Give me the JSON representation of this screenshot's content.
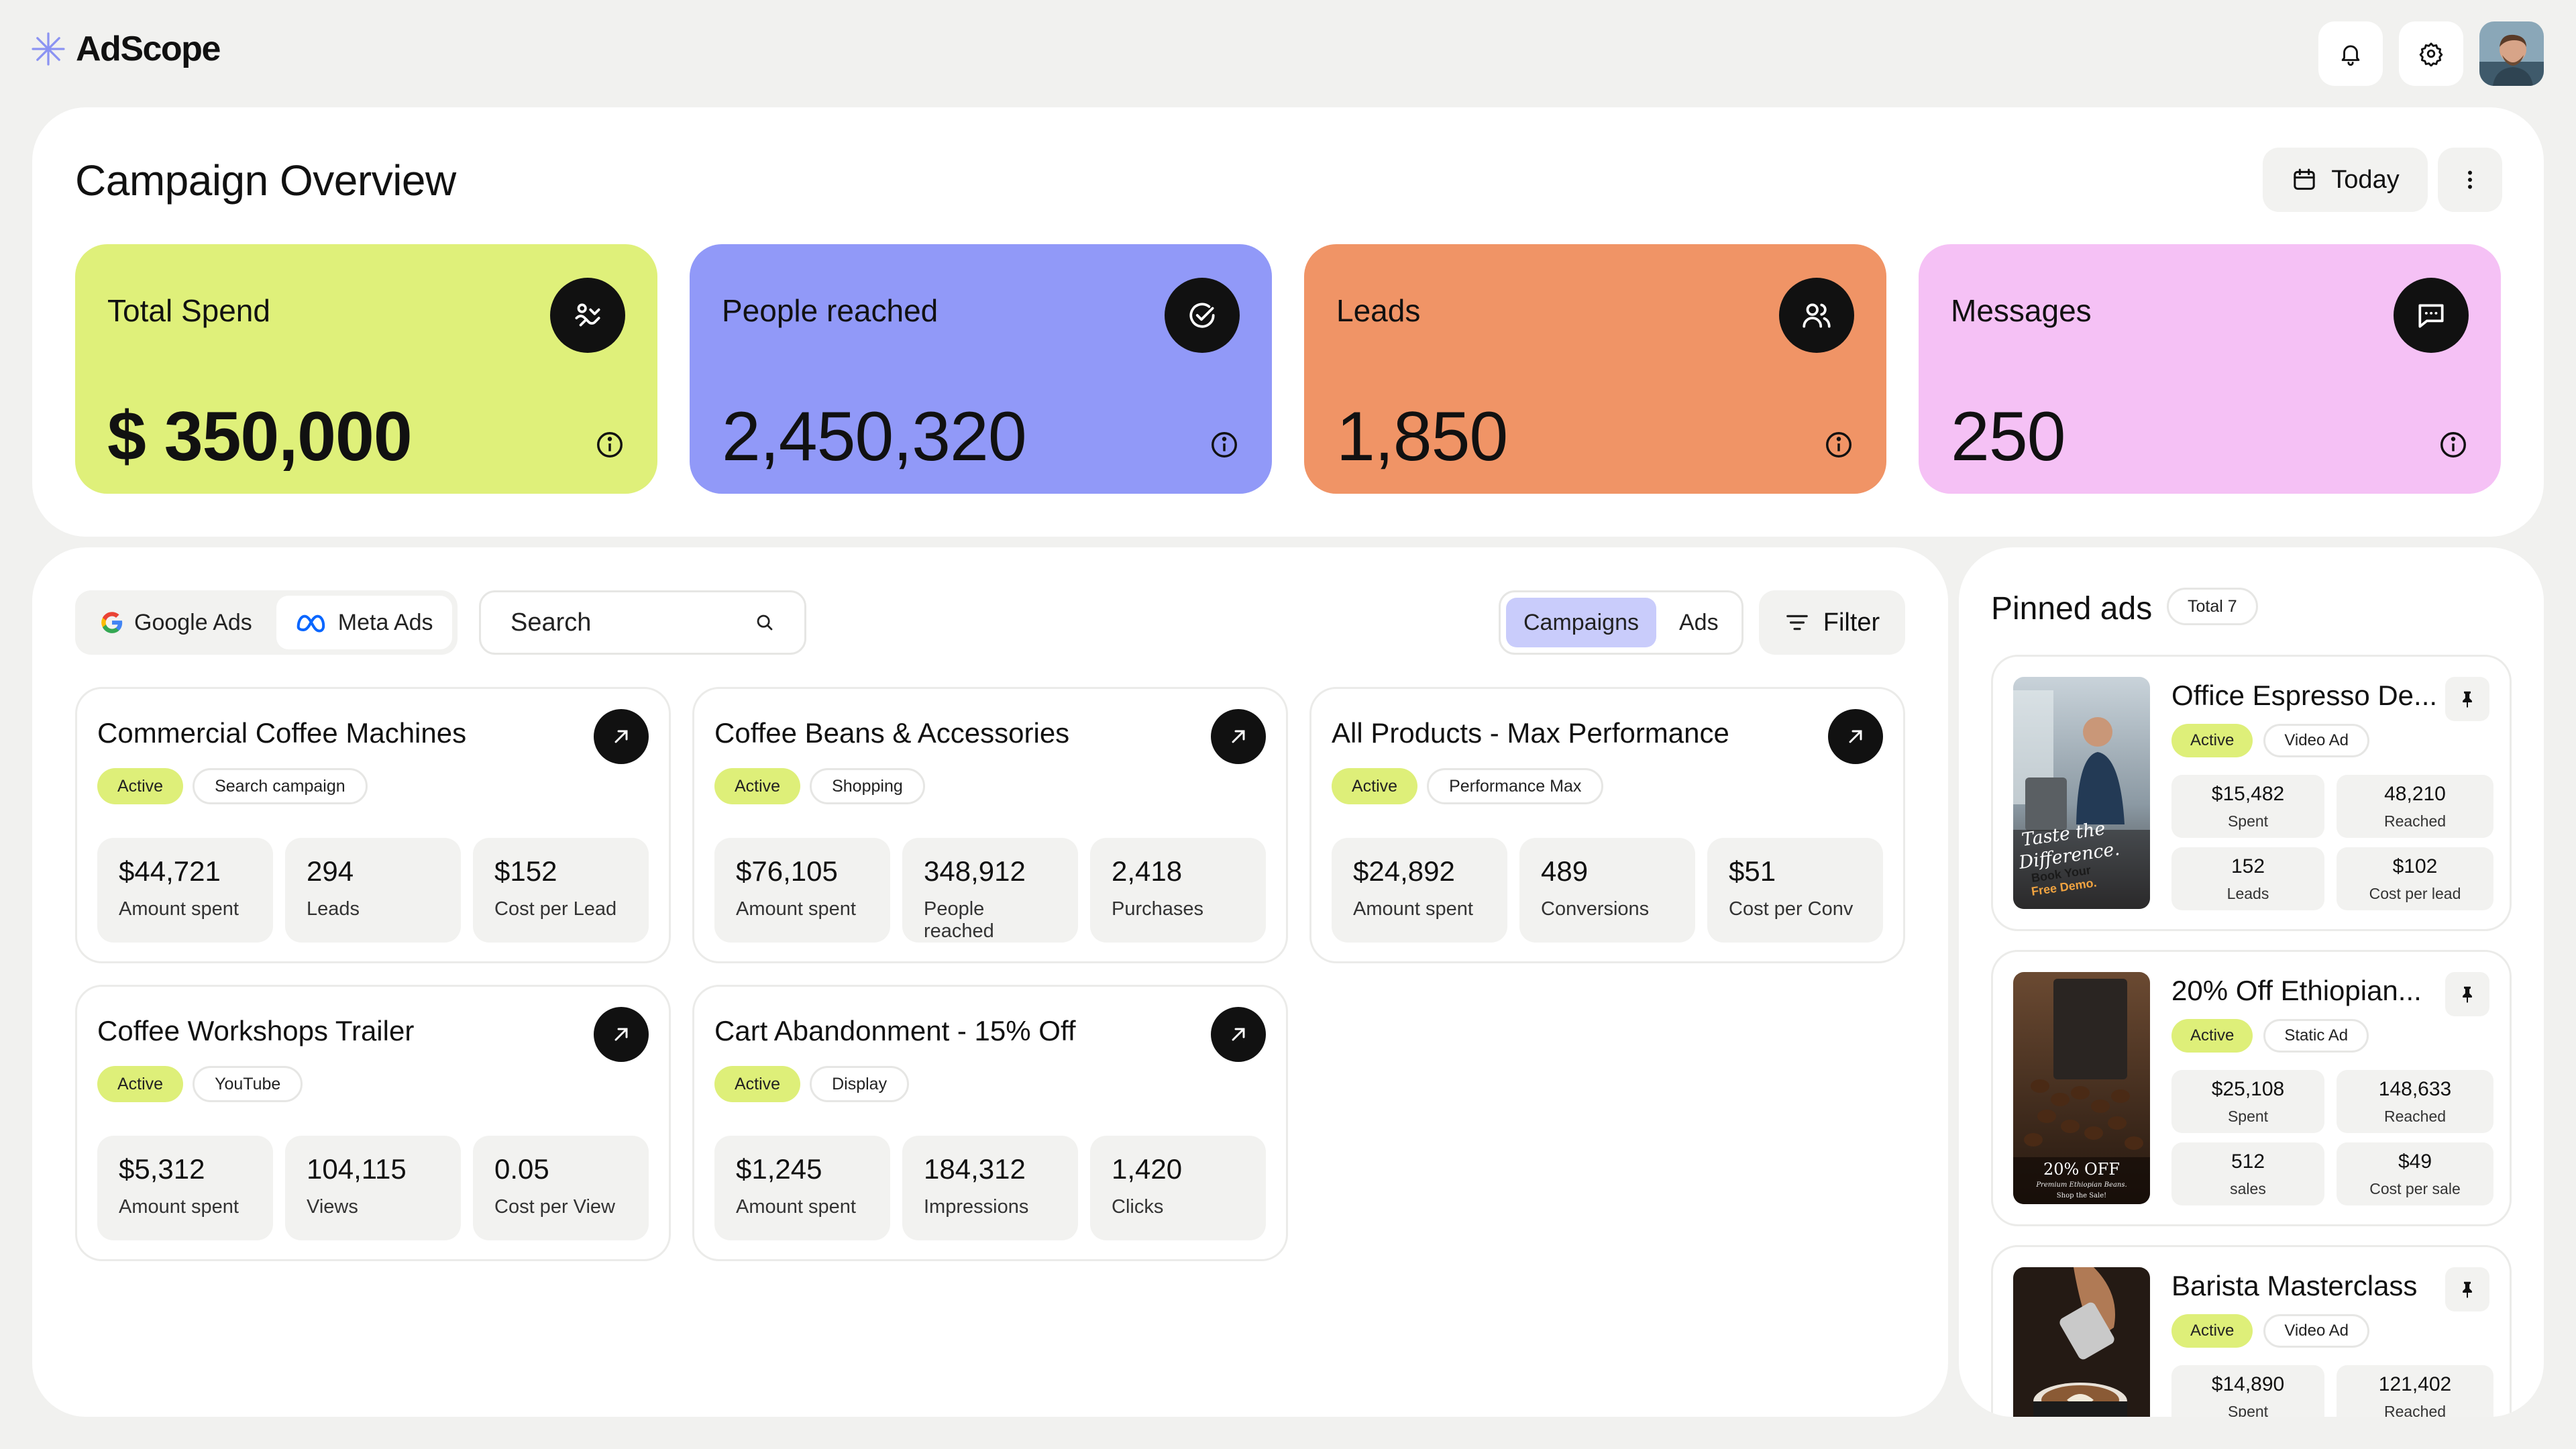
{
  "app": {
    "name": "AdScope"
  },
  "header": {
    "icons": [
      "bell-icon",
      "gear-icon",
      "avatar"
    ]
  },
  "overview": {
    "title": "Campaign Overview",
    "date_button": "Today",
    "stats": [
      {
        "title": "Total Spend",
        "value": "$ 350,000",
        "color": "#dff07a",
        "icon": "handshake-icon"
      },
      {
        "title": "People reached",
        "value": "2,450,320",
        "color": "#9199f8",
        "icon": "check-circle-icon"
      },
      {
        "title": "Leads",
        "value": "1,850",
        "color": "#f09466",
        "icon": "users-icon"
      },
      {
        "title": "Messages",
        "value": "250",
        "color": "#f5c1f5",
        "icon": "message-icon"
      }
    ]
  },
  "campaigns_panel": {
    "platforms": [
      {
        "label": "Google Ads",
        "icon": "google-icon"
      },
      {
        "label": "Meta Ads",
        "icon": "meta-icon"
      }
    ],
    "search_placeholder": "Search",
    "tabs": [
      "Campaigns",
      "Ads"
    ],
    "filter_label": "Filter",
    "cards": [
      {
        "title": "Commercial Coffee Machines",
        "status": "Active",
        "type": "Search campaign",
        "metrics": [
          {
            "value": "$44,721",
            "label": "Amount spent"
          },
          {
            "value": "294",
            "label": "Leads"
          },
          {
            "value": "$152",
            "label": "Cost per Lead"
          }
        ]
      },
      {
        "title": "Coffee Beans & Accessories",
        "status": "Active",
        "type": "Shopping",
        "metrics": [
          {
            "value": "$76,105",
            "label": "Amount spent"
          },
          {
            "value": "348,912",
            "label": "People reached"
          },
          {
            "value": "2,418",
            "label": "Purchases"
          }
        ]
      },
      {
        "title": "All Products - Max Performance",
        "status": "Active",
        "type": "Performance Max",
        "metrics": [
          {
            "value": "$24,892",
            "label": "Amount spent"
          },
          {
            "value": "489",
            "label": "Conversions"
          },
          {
            "value": "$51",
            "label": "Cost per Conv"
          }
        ]
      },
      {
        "title": "Coffee Workshops Trailer",
        "status": "Active",
        "type": "YouTube",
        "metrics": [
          {
            "value": "$5,312",
            "label": "Amount spent"
          },
          {
            "value": "104,115",
            "label": "Views"
          },
          {
            "value": "0.05",
            "label": "Cost per View"
          }
        ]
      },
      {
        "title": "Cart Abandonment - 15% Off",
        "status": "Active",
        "type": "Display",
        "metrics": [
          {
            "value": "$1,245",
            "label": "Amount spent"
          },
          {
            "value": "184,312",
            "label": "Impressions"
          },
          {
            "value": "1,420",
            "label": "Clicks"
          }
        ]
      }
    ]
  },
  "pinned": {
    "title": "Pinned ads",
    "total": "Total 7",
    "ads": [
      {
        "title": "Office Espresso De...",
        "status": "Active",
        "type": "Video Ad",
        "image_text": [
          "Taste the",
          "Difference.",
          "Book Your",
          "Free Demo."
        ],
        "metrics": [
          {
            "value": "$15,482",
            "label": "Spent"
          },
          {
            "value": "48,210",
            "label": "Reached"
          },
          {
            "value": "152",
            "label": "Leads"
          },
          {
            "value": "$102",
            "label": "Cost per lead"
          }
        ]
      },
      {
        "title": "20% Off Ethiopian...",
        "status": "Active",
        "type": "Static Ad",
        "image_text": [
          "20% OFF",
          "Premium Ethiopian Beans.",
          "Shop the Sale!"
        ],
        "metrics": [
          {
            "value": "$25,108",
            "label": "Spent"
          },
          {
            "value": "148,633",
            "label": "Reached"
          },
          {
            "value": "512",
            "label": "sales"
          },
          {
            "value": "$49",
            "label": "Cost per sale"
          }
        ]
      },
      {
        "title": "Barista Masterclass",
        "status": "Active",
        "type": "Video Ad",
        "metrics": [
          {
            "value": "$14,890",
            "label": "Spent"
          },
          {
            "value": "121,402",
            "label": "Reached"
          }
        ]
      }
    ]
  }
}
